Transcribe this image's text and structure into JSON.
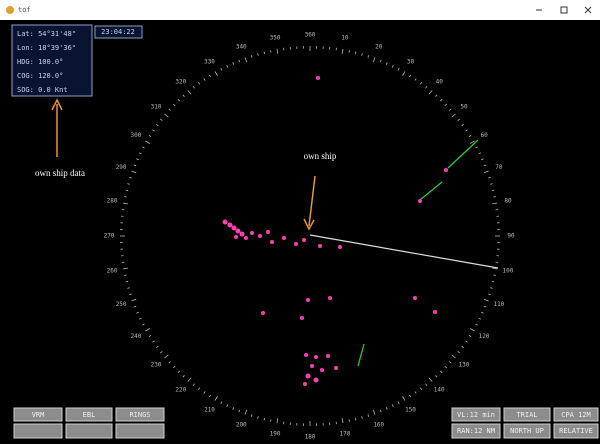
{
  "window": {
    "title": "tof"
  },
  "info_box": {
    "lat": "Lat: 54°31'48\"",
    "lon": "Lon: 18°39'36\"",
    "hdg": "HDG: 100.0°",
    "cog": "COG: 120.0°",
    "sog": "SOG: 0.0 Knt"
  },
  "clock": "23:04:22",
  "annotations": {
    "own_ship_data": "own ship data",
    "own_ship": "own ship"
  },
  "bearing_labels": [
    "360",
    "10",
    "20",
    "30",
    "40",
    "50",
    "60",
    "70",
    "80",
    "90",
    "100",
    "110",
    "120",
    "130",
    "140",
    "150",
    "160",
    "170",
    "180",
    "190",
    "200",
    "210",
    "220",
    "230",
    "240",
    "250",
    "260",
    "270",
    "280",
    "290",
    "300",
    "310",
    "320",
    "330",
    "340",
    "350"
  ],
  "buttons_left": {
    "row1": [
      "VRM",
      "EBL",
      "RINGS"
    ]
  },
  "buttons_right": {
    "row1": [
      "VL:12 min",
      "TRIAL",
      "CPA 12M"
    ],
    "row2": [
      "RAN:12 NM",
      "NORTH UP",
      "RELATIVE"
    ]
  }
}
